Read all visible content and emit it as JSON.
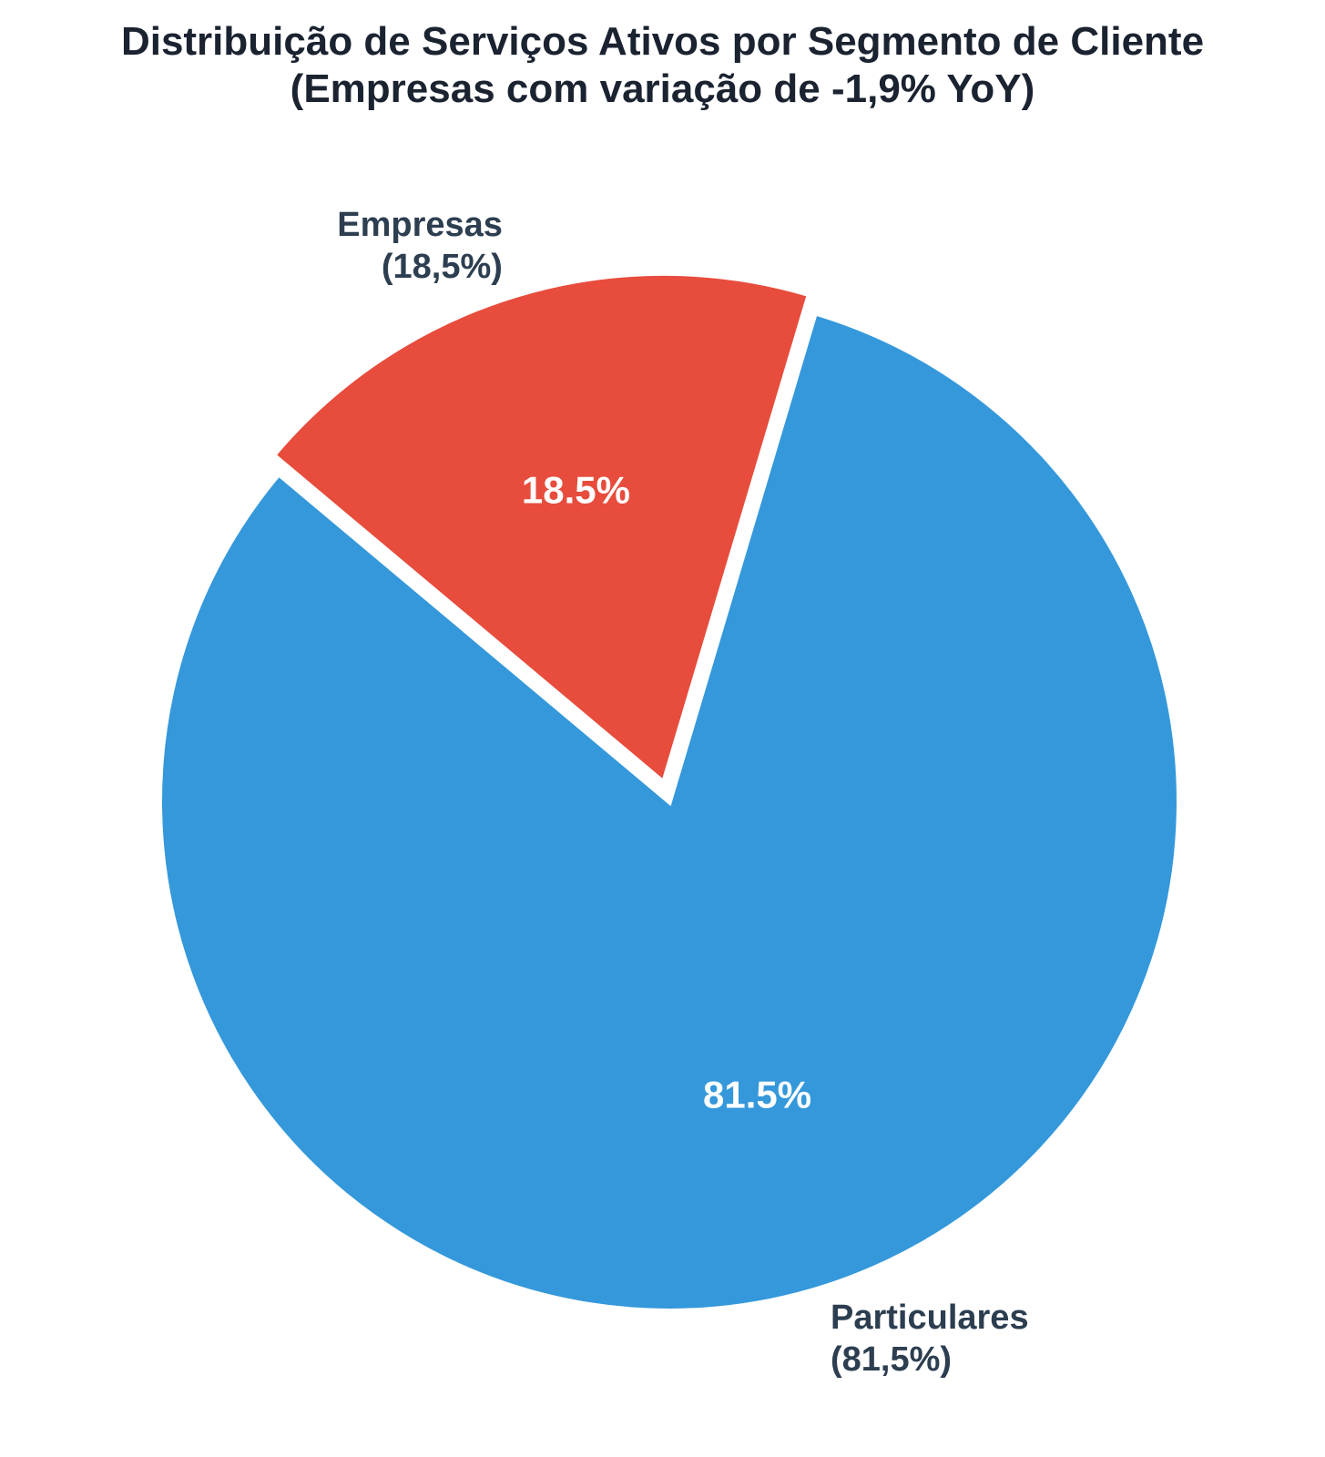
{
  "chart_data": {
    "type": "pie",
    "title_lines": [
      "Distribuição de Serviços Ativos por Segmento de Cliente",
      "(Empresas com variação de -1,9% YoY)"
    ],
    "slices": [
      {
        "name": "Empresas",
        "value": 18.5,
        "label_line1": "Empresas",
        "label_line2": "(18,5%)",
        "pct_label": "18.5%",
        "color": "#e74c3c",
        "exploded": true
      },
      {
        "name": "Particulares",
        "value": 81.5,
        "label_line1": "Particulares",
        "label_line2": "(81,5%)",
        "pct_label": "81.5%",
        "color": "#3498db",
        "exploded": false
      }
    ],
    "start_angle_deg": 140,
    "direction": "clockwise",
    "legend": "none",
    "grid": false
  }
}
